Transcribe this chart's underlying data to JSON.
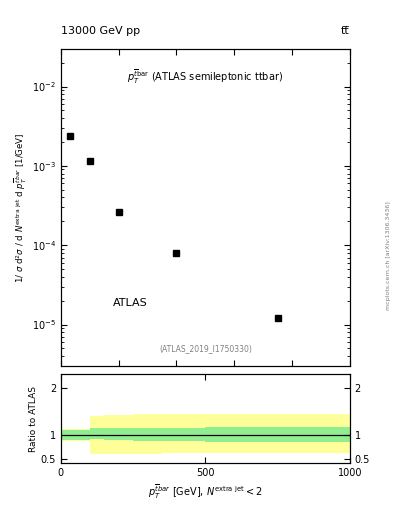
{
  "title_left": "13000 GeV pp",
  "title_right": "tt̅",
  "annotation": "$p_T^{\\bar{t}bar}$ (ATLAS semileptonic ttbar)",
  "ref_label": "(ATLAS_2019_I1750330)",
  "watermark": "mcplots.cern.ch [arXiv:1306.3436]",
  "data_x": [
    30,
    100,
    200,
    400,
    750
  ],
  "data_y": [
    0.0024,
    0.00115,
    0.00026,
    8e-05,
    1.2e-05
  ],
  "ylim_main": [
    3e-06,
    0.03
  ],
  "xlim": [
    0,
    1000
  ],
  "ratio_ylim": [
    0.4,
    2.3
  ],
  "color_green": "#90EE90",
  "color_yellow": "#FFFF99",
  "bin_edges": [
    0,
    50,
    100,
    150,
    250,
    350,
    500,
    1000
  ],
  "green_lo": [
    0.89,
    0.89,
    0.91,
    0.9,
    0.88,
    0.87,
    0.85
  ],
  "green_hi": [
    1.11,
    1.11,
    1.14,
    1.15,
    1.16,
    1.16,
    1.17
  ],
  "yellow_lo": [
    0.88,
    0.88,
    0.6,
    0.6,
    0.6,
    0.61,
    0.62
  ],
  "yellow_hi": [
    1.12,
    1.12,
    1.41,
    1.43,
    1.44,
    1.44,
    1.45
  ]
}
